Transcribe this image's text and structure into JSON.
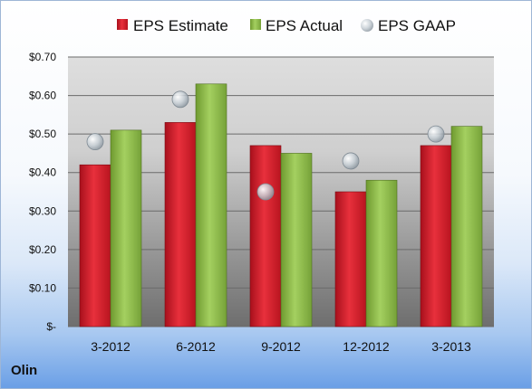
{
  "company": "Olin",
  "colors": {
    "estimate": "#d11d2c",
    "actual": "#8fc04c",
    "gaap": "#b9c4cc"
  },
  "chart_data": {
    "type": "bar",
    "categories": [
      "3-2012",
      "6-2012",
      "9-2012",
      "12-2012",
      "3-2013"
    ],
    "series": [
      {
        "name": "EPS Estimate",
        "kind": "bar",
        "values": [
          0.42,
          0.53,
          0.47,
          0.35,
          0.47
        ]
      },
      {
        "name": "EPS Actual",
        "kind": "bar",
        "values": [
          0.51,
          0.63,
          0.45,
          0.38,
          0.52
        ]
      },
      {
        "name": "EPS GAAP",
        "kind": "marker",
        "values": [
          0.48,
          0.59,
          0.35,
          0.43,
          0.5
        ]
      }
    ],
    "ylim": [
      0,
      0.7
    ],
    "yticks": [
      0,
      0.1,
      0.2,
      0.3,
      0.4,
      0.5,
      0.6,
      0.7
    ],
    "ytick_labels": [
      "$-",
      "$0.10",
      "$0.20",
      "$0.30",
      "$0.40",
      "$0.50",
      "$0.60",
      "$0.70"
    ],
    "grid": true,
    "legend_position": "top"
  }
}
